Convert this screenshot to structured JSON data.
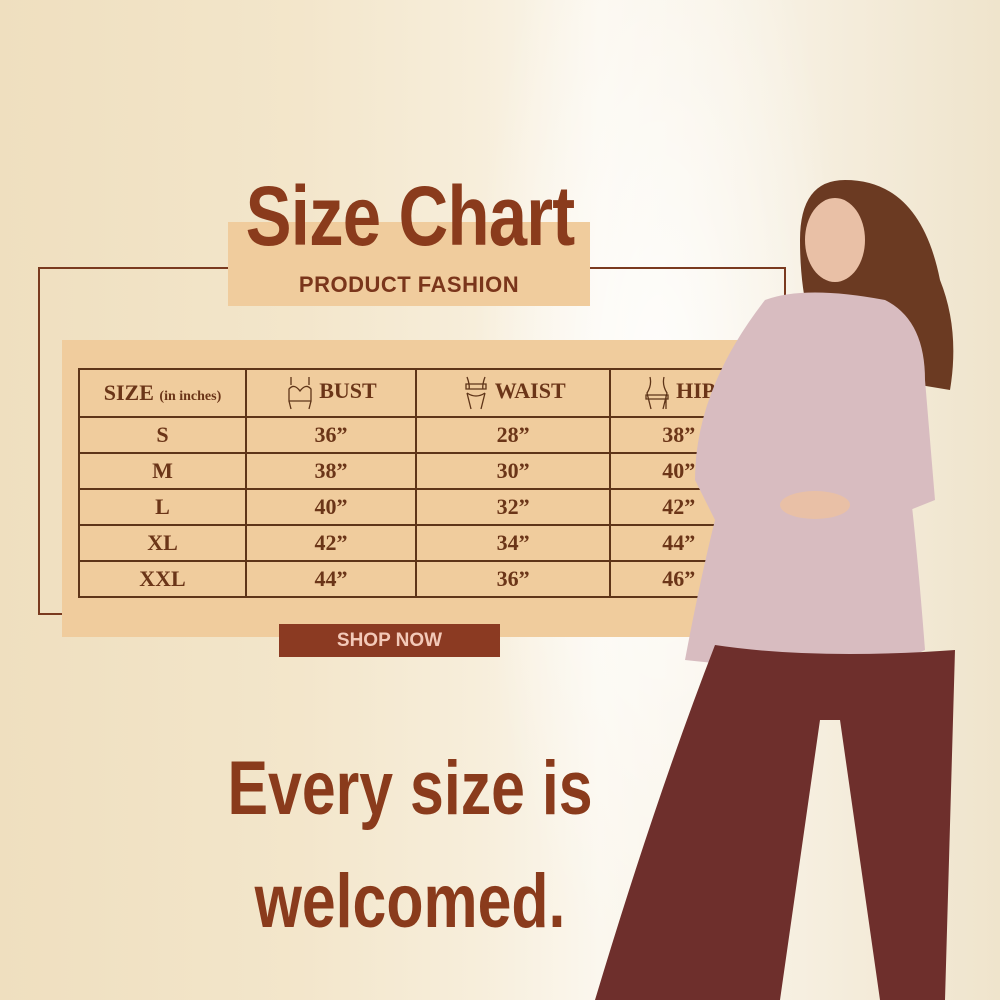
{
  "header": {
    "title": "Size Chart",
    "subtitle": "PRODUCT FASHION"
  },
  "table": {
    "headers": [
      {
        "label": "SIZE",
        "note": "(in inches)",
        "icon": ""
      },
      {
        "label": "BUST",
        "icon": "bust-icon"
      },
      {
        "label": "WAIST",
        "icon": "waist-icon"
      },
      {
        "label": "HIP",
        "icon": "hip-icon"
      }
    ],
    "rows": [
      [
        "S",
        "36”",
        "28”",
        "38”"
      ],
      [
        "M",
        "38”",
        "30”",
        "40”"
      ],
      [
        "L",
        "40”",
        "32”",
        "42”"
      ],
      [
        "XL",
        "42”",
        "34”",
        "44”"
      ],
      [
        "XXL",
        "44”",
        "36”",
        "46”"
      ]
    ]
  },
  "cta": {
    "label": "SHOP NOW"
  },
  "tagline": {
    "line1": "Every size is",
    "line2": "welcomed."
  },
  "colors": {
    "brand": "#8a3b1c",
    "panel": "#f0cc9d",
    "button": "#8b3a22",
    "button_text": "#f3c9b8",
    "pants": "#6e2f2c"
  }
}
